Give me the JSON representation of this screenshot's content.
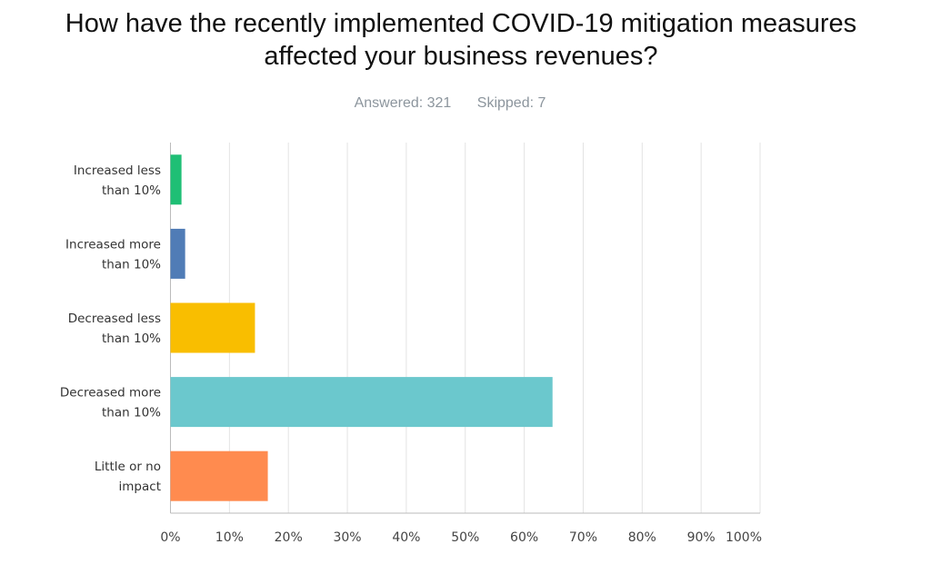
{
  "chart_data": {
    "type": "bar",
    "orientation": "horizontal",
    "title": "How have the recently implemented COVID-19 mitigation measures affected your business revenues?",
    "title_lines": [
      "How have the recently implemented COVID-19 mitigation measures",
      "affected your business revenues?"
    ],
    "answered": "Answered: 321",
    "skipped": "Skipped: 7",
    "categories": [
      [
        "Increased less",
        "than 10%"
      ],
      [
        "Increased more",
        "than 10%"
      ],
      [
        "Decreased less",
        "than 10%"
      ],
      [
        "Decreased more",
        "than 10%"
      ],
      [
        "Little or no",
        "impact"
      ]
    ],
    "values": [
      1.87,
      2.49,
      14.33,
      64.8,
      16.51
    ],
    "colors": [
      "#1fbf75",
      "#507cb6",
      "#f9be00",
      "#6bc8cd",
      "#ff8b4f"
    ],
    "xlim": [
      0,
      100
    ],
    "xticks": [
      "0%",
      "10%",
      "20%",
      "30%",
      "40%",
      "50%",
      "60%",
      "70%",
      "80%",
      "90%",
      "100%"
    ],
    "grid": true,
    "xlabel": "",
    "ylabel": ""
  }
}
